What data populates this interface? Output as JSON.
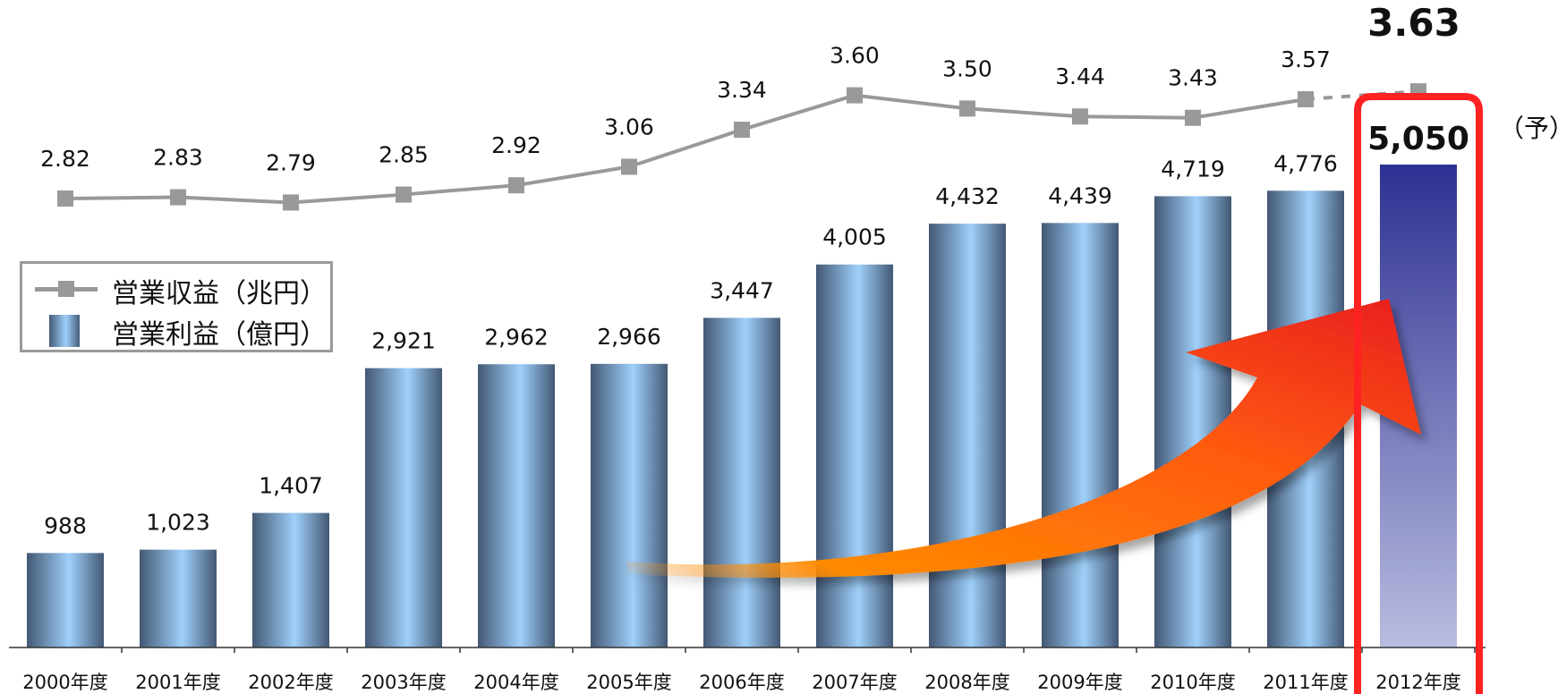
{
  "chart_data": {
    "type": "bar",
    "categories": [
      "2000年度",
      "2001年度",
      "2002年度",
      "2003年度",
      "2004年度",
      "2005年度",
      "2006年度",
      "2007年度",
      "2008年度",
      "2009年度",
      "2010年度",
      "2011年度",
      "2012年度"
    ],
    "series": [
      {
        "name": "営業利益（億円）",
        "type": "bar",
        "values": [
          988,
          1023,
          1407,
          2921,
          2962,
          2966,
          3447,
          4005,
          4432,
          4439,
          4719,
          4776,
          5050
        ],
        "labels": [
          "988",
          "1,023",
          "1,407",
          "2,921",
          "2,962",
          "2,966",
          "3,447",
          "4,005",
          "4,432",
          "4,439",
          "4,719",
          "4,776",
          "5,050"
        ],
        "color": "#9fd0fb",
        "highlight_color": "#2e3192"
      },
      {
        "name": "営業収益（兆円）",
        "type": "line",
        "values": [
          2.82,
          2.83,
          2.79,
          2.85,
          2.92,
          3.06,
          3.34,
          3.6,
          3.5,
          3.44,
          3.43,
          3.57,
          3.63
        ],
        "labels": [
          "2.82",
          "2.83",
          "2.79",
          "2.85",
          "2.92",
          "3.06",
          "3.34",
          "3.60",
          "3.50",
          "3.44",
          "3.43",
          "3.57",
          "3.63"
        ],
        "color": "#999999"
      }
    ],
    "forecast_index": 12,
    "forecast_note": "（予）",
    "highlight_color": "#ff2222",
    "arrow_colors": [
      "#ff7a00",
      "#ee2222"
    ],
    "legend_position": "left"
  }
}
